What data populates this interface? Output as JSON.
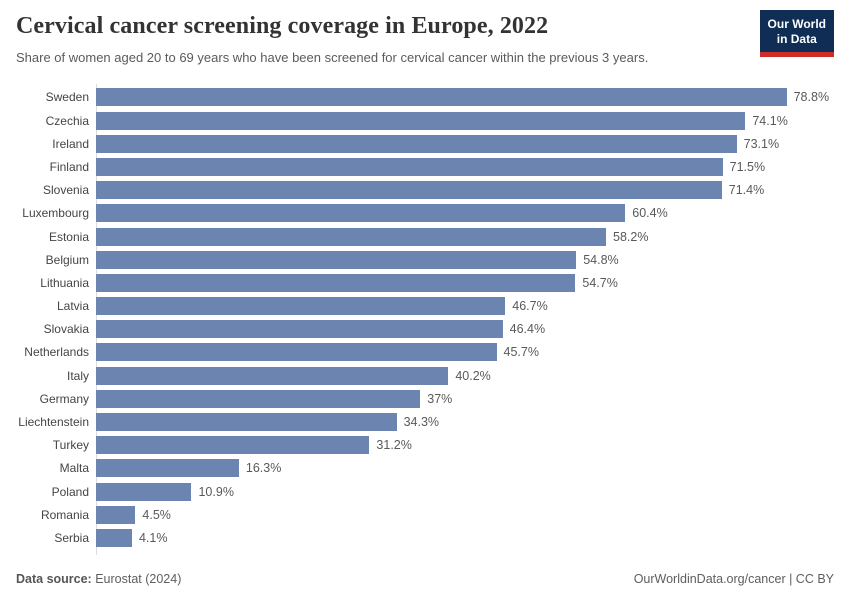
{
  "header": {
    "title": "Cervical cancer screening coverage in Europe, 2022",
    "subtitle": "Share of women aged 20 to 69 years who have been screened for cervical cancer within the previous 3 years.",
    "logo": {
      "line1": "Our World",
      "line2": "in Data",
      "bg_color": "#0f2d55",
      "accent_color": "#cd2d28"
    }
  },
  "chart_data": {
    "type": "bar",
    "orientation": "horizontal",
    "title": "Cervical cancer screening coverage in Europe, 2022",
    "subtitle": "Share of women aged 20 to 69 years who have been screened for cervical cancer within the previous 3 years.",
    "unit": "%",
    "xlim": [
      0,
      80
    ],
    "grid": false,
    "legend": "none",
    "bar_color": "#6c84b0",
    "categories": [
      "Sweden",
      "Czechia",
      "Ireland",
      "Finland",
      "Slovenia",
      "Luxembourg",
      "Estonia",
      "Belgium",
      "Lithuania",
      "Latvia",
      "Slovakia",
      "Netherlands",
      "Italy",
      "Germany",
      "Liechtenstein",
      "Turkey",
      "Malta",
      "Poland",
      "Romania",
      "Serbia"
    ],
    "values": [
      78.8,
      74.1,
      73.1,
      71.5,
      71.4,
      60.4,
      58.2,
      54.8,
      54.7,
      46.7,
      46.4,
      45.7,
      40.2,
      37,
      34.3,
      31.2,
      16.3,
      10.9,
      4.5,
      4.1
    ],
    "value_labels": [
      "78.8%",
      "74.1%",
      "73.1%",
      "71.5%",
      "71.4%",
      "60.4%",
      "58.2%",
      "54.8%",
      "54.7%",
      "46.7%",
      "46.4%",
      "45.7%",
      "40.2%",
      "37%",
      "34.3%",
      "31.2%",
      "16.3%",
      "10.9%",
      "4.5%",
      "4.1%"
    ]
  },
  "footer": {
    "datasource_label": "Data source:",
    "datasource_value": " Eurostat (2024)",
    "credit": "OurWorldinData.org/cancer | CC BY"
  }
}
